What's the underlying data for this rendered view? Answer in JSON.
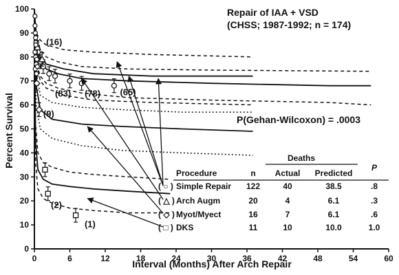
{
  "chart_data": {
    "type": "line",
    "title": "Repair of IAA + VSD",
    "subtitle": "(CHSS; 1987-1992; n = 174)",
    "xlabel": "Interval (Months) After Arch Repair",
    "ylabel": "Percent Survival",
    "xlim": [
      0,
      60
    ],
    "ylim": [
      0,
      100
    ],
    "x_ticks": [
      "0",
      "6",
      "12",
      "18",
      "24",
      "30",
      "36",
      "42",
      "48",
      "54",
      "60"
    ],
    "y_ticks": [
      "0",
      "10",
      "20",
      "30",
      "40",
      "50",
      "60",
      "70",
      "80",
      "90",
      "100"
    ],
    "p_value_label": "P(Gehan-Wilcoxon) = .0003",
    "series": [
      {
        "symbol": "circle",
        "curve": [
          [
            0,
            100
          ],
          [
            0.2,
            88
          ],
          [
            0.5,
            82
          ],
          [
            1,
            78
          ],
          [
            2,
            75
          ],
          [
            4,
            73
          ],
          [
            8,
            71
          ],
          [
            16,
            70
          ],
          [
            30,
            69
          ],
          [
            50,
            68
          ],
          [
            57,
            68
          ]
        ],
        "upper": [
          [
            0,
            100
          ],
          [
            0.2,
            92
          ],
          [
            0.5,
            87
          ],
          [
            1,
            83
          ],
          [
            2,
            80
          ],
          [
            4,
            78
          ],
          [
            8,
            76
          ],
          [
            16,
            75
          ],
          [
            30,
            74.5
          ],
          [
            57,
            74
          ]
        ],
        "lower": [
          [
            0,
            100
          ],
          [
            0.2,
            82
          ],
          [
            0.5,
            76
          ],
          [
            1,
            72
          ],
          [
            2,
            69
          ],
          [
            4,
            67
          ],
          [
            8,
            65
          ],
          [
            16,
            63
          ],
          [
            30,
            62
          ],
          [
            50,
            61
          ],
          [
            57,
            60
          ]
        ],
        "points": [
          {
            "x": 0.3,
            "y": 86
          },
          {
            "x": 0.6,
            "y": 82
          },
          {
            "x": 1.0,
            "y": 78
          },
          {
            "x": 1.5,
            "y": 76
          },
          {
            "x": 2.5,
            "y": 73
          },
          {
            "x": 3.5,
            "y": 72
          },
          {
            "x": 6.0,
            "y": 70
          },
          {
            "x": 8.0,
            "y": 69
          },
          {
            "x": 13.5,
            "y": 68
          }
        ],
        "labels": [
          {
            "text": "(83)",
            "x": 3.5,
            "y": 63.5
          },
          {
            "text": "(78)",
            "x": 8.5,
            "y": 63.5
          },
          {
            "text": "(65)",
            "x": 14.5,
            "y": 64
          }
        ]
      },
      {
        "symbol": "triangle",
        "curve": [
          [
            0,
            100
          ],
          [
            0.3,
            86
          ],
          [
            1,
            80
          ],
          [
            2,
            77
          ],
          [
            5,
            75
          ],
          [
            10,
            73
          ],
          [
            20,
            72
          ],
          [
            37,
            72
          ]
        ],
        "upper": [
          [
            0,
            100
          ],
          [
            0.3,
            90
          ],
          [
            1,
            87
          ],
          [
            2,
            85
          ],
          [
            5,
            83
          ],
          [
            10,
            82
          ],
          [
            20,
            81
          ],
          [
            37,
            80
          ]
        ],
        "lower": [
          [
            0,
            100
          ],
          [
            0.3,
            78
          ],
          [
            1,
            70
          ],
          [
            2,
            67
          ],
          [
            5,
            64
          ],
          [
            10,
            62
          ],
          [
            20,
            61
          ],
          [
            37,
            60
          ]
        ],
        "points": [
          {
            "x": 0.5,
            "y": 84
          },
          {
            "x": 1.3,
            "y": 79
          }
        ],
        "labels": [
          {
            "text": "(16)",
            "x": 2,
            "y": 85
          }
        ]
      },
      {
        "symbol": "diamond",
        "curve": [
          [
            0,
            100
          ],
          [
            0.3,
            68
          ],
          [
            1,
            58
          ],
          [
            3,
            54
          ],
          [
            8,
            52
          ],
          [
            15,
            51
          ],
          [
            25,
            50
          ],
          [
            37,
            49
          ]
        ],
        "upper": [
          [
            0,
            100
          ],
          [
            0.3,
            74
          ],
          [
            1,
            64
          ],
          [
            3,
            61
          ],
          [
            8,
            59
          ],
          [
            15,
            58
          ],
          [
            25,
            57
          ],
          [
            37,
            57
          ]
        ],
        "lower": [
          [
            0,
            100
          ],
          [
            0.3,
            60
          ],
          [
            1,
            50
          ],
          [
            3,
            46
          ],
          [
            8,
            43
          ],
          [
            15,
            41
          ],
          [
            25,
            40
          ],
          [
            37,
            39
          ]
        ],
        "points": [
          {
            "x": 0.4,
            "y": 69
          },
          {
            "x": 0.8,
            "y": 58
          }
        ],
        "labels": [
          {
            "text": "(9)",
            "x": 1.5,
            "y": 55
          }
        ]
      },
      {
        "symbol": "square",
        "curve": [
          [
            0,
            100
          ],
          [
            0.2,
            45
          ],
          [
            0.6,
            33
          ],
          [
            1.5,
            29
          ],
          [
            3,
            27
          ],
          [
            6,
            26
          ],
          [
            10,
            25
          ],
          [
            16,
            24
          ],
          [
            23,
            23
          ]
        ],
        "upper": [
          [
            0,
            100
          ],
          [
            0.2,
            52
          ],
          [
            0.6,
            40
          ],
          [
            1.5,
            36
          ],
          [
            3,
            34
          ],
          [
            6,
            32
          ],
          [
            10,
            31
          ],
          [
            16,
            30
          ],
          [
            23,
            29
          ]
        ],
        "lower": [
          [
            0,
            100
          ],
          [
            0.2,
            36
          ],
          [
            0.6,
            25
          ],
          [
            1.5,
            21
          ],
          [
            3,
            19
          ],
          [
            6,
            17
          ],
          [
            10,
            16
          ],
          [
            16,
            15
          ],
          [
            23,
            15
          ]
        ],
        "points": [
          {
            "x": 1.8,
            "y": 33
          },
          {
            "x": 2.3,
            "y": 23
          },
          {
            "x": 7.0,
            "y": 14
          }
        ],
        "labels": [
          {
            "text": "(2)",
            "x": 2.8,
            "y": 17
          },
          {
            "text": "(1)",
            "x": 8.5,
            "y": 9
          }
        ]
      }
    ],
    "table": {
      "deaths_header": "Deaths",
      "headers": [
        "Procedure",
        "n",
        "Actual",
        "Predicted",
        "P"
      ],
      "rows": [
        {
          "symbol_text": "( ○ )",
          "procedure": "Simple Repair",
          "n": "122",
          "actual": "40",
          "predicted": "38.5",
          "p": ".8"
        },
        {
          "symbol_text": "( △ )",
          "procedure": "Arch Augm",
          "n": "20",
          "actual": "4",
          "predicted": "6.1",
          "p": ".3"
        },
        {
          "symbol_text": "( ◇ )",
          "procedure": "Myot/Myect",
          "n": "16",
          "actual": "7",
          "predicted": "6.1",
          "p": ".6"
        },
        {
          "symbol_text": "( □ )",
          "procedure": "DKS",
          "n": "11",
          "actual": "10",
          "predicted": "10.0",
          "p": "1.0"
        }
      ]
    }
  }
}
